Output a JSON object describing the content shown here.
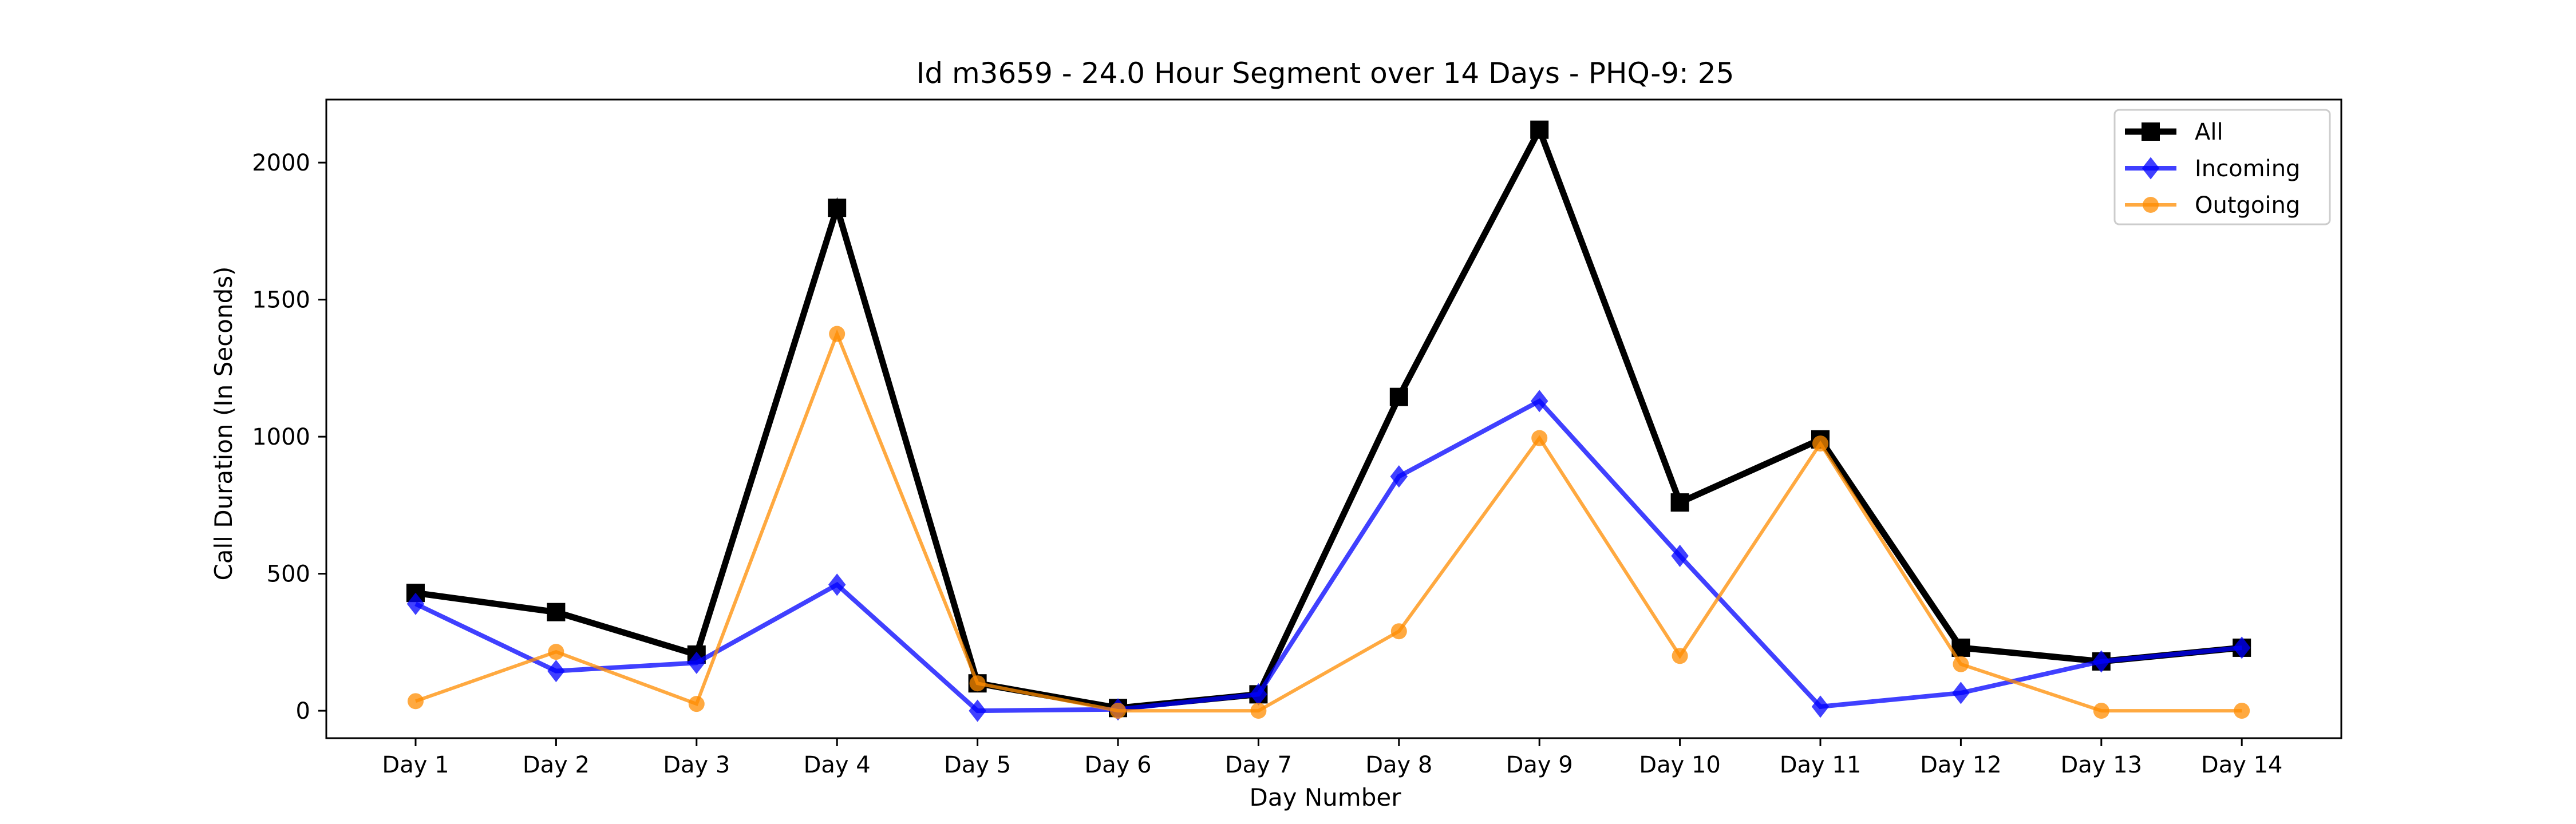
{
  "chart_data": {
    "type": "line",
    "title": "Id m3659 - 24.0 Hour Segment over 14 Days - PHQ-9: 25",
    "xlabel": "Day Number",
    "ylabel": "Call Duration (In Seconds)",
    "categories": [
      "Day 1",
      "Day 2",
      "Day 3",
      "Day 4",
      "Day 5",
      "Day 6",
      "Day 7",
      "Day 8",
      "Day 9",
      "Day 10",
      "Day 11",
      "Day 12",
      "Day 13",
      "Day 14"
    ],
    "ylim": [
      -100,
      2230
    ],
    "yticks": [
      0,
      500,
      1000,
      1500,
      2000
    ],
    "grid": false,
    "legend_position": "top-right",
    "series": [
      {
        "name": "All",
        "color": "#000000",
        "marker": "square",
        "values": [
          430,
          360,
          205,
          1835,
          100,
          10,
          60,
          1145,
          2120,
          760,
          990,
          230,
          180,
          230
        ]
      },
      {
        "name": "Incoming",
        "color": "#0000ff",
        "marker": "diamond",
        "values": [
          390,
          145,
          175,
          460,
          0,
          5,
          60,
          855,
          1130,
          565,
          15,
          65,
          180,
          230
        ]
      },
      {
        "name": "Outgoing",
        "color": "#ff8c00",
        "marker": "circle",
        "values": [
          35,
          215,
          25,
          1375,
          100,
          0,
          0,
          290,
          995,
          200,
          975,
          170,
          0,
          0
        ]
      }
    ]
  }
}
